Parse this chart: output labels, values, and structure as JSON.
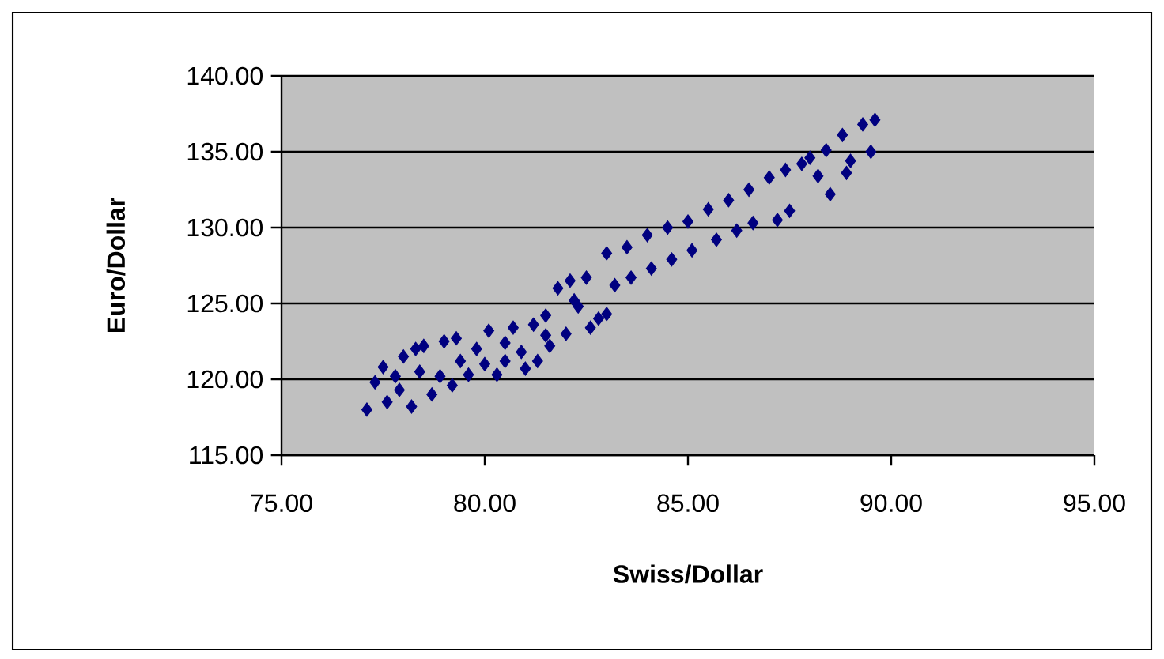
{
  "chart_data": {
    "type": "scatter",
    "xlabel": "Swiss/Dollar",
    "ylabel": "Euro/Dollar",
    "xlim": [
      75,
      95
    ],
    "ylim": [
      115,
      140
    ],
    "xticks": [
      {
        "value": 75,
        "label": "75.00"
      },
      {
        "value": 80,
        "label": "80.00"
      },
      {
        "value": 85,
        "label": "85.00"
      },
      {
        "value": 90,
        "label": "90.00"
      },
      {
        "value": 95,
        "label": "95.00"
      }
    ],
    "yticks": [
      {
        "value": 115,
        "label": "115.00"
      },
      {
        "value": 120,
        "label": "120.00"
      },
      {
        "value": 125,
        "label": "125.00"
      },
      {
        "value": 130,
        "label": "130.00"
      },
      {
        "value": 135,
        "label": "135.00"
      },
      {
        "value": 140,
        "label": "140.00"
      }
    ],
    "grid": "y",
    "marker": "diamond",
    "series": [
      {
        "color": "#000080",
        "x": [
          77.1,
          77.3,
          77.5,
          77.6,
          77.9,
          78.0,
          78.2,
          78.4,
          78.5,
          78.7,
          78.9,
          79.0,
          79.2,
          79.4,
          79.6,
          79.8,
          80.0,
          80.1,
          80.3,
          80.5,
          80.7,
          80.9,
          81.0,
          81.2,
          81.3,
          81.5,
          81.6,
          81.8,
          82.0,
          82.1,
          82.3,
          82.5,
          82.6,
          82.8,
          83.0,
          83.0,
          83.2,
          83.5,
          83.6,
          84.0,
          84.1,
          84.5,
          84.6,
          85.0,
          85.1,
          85.5,
          85.7,
          86.0,
          86.2,
          86.5,
          86.6,
          87.0,
          87.2,
          87.5,
          87.4,
          87.8,
          88.0,
          88.2,
          88.4,
          88.5,
          88.8,
          88.9,
          89.0,
          89.3,
          89.5,
          89.6,
          78.3,
          77.8,
          79.3,
          80.5,
          81.5,
          82.2
        ],
        "values": [
          118,
          119.8,
          120.8,
          118.5,
          119.3,
          121.5,
          118.2,
          120.5,
          122.2,
          119,
          120.2,
          122.5,
          119.6,
          121.2,
          120.3,
          122,
          121,
          123.2,
          120.3,
          122.4,
          123.4,
          121.8,
          120.7,
          123.6,
          121.2,
          124.2,
          122.2,
          126,
          123,
          126.5,
          124.8,
          126.7,
          123.4,
          124,
          128.3,
          124.3,
          126.2,
          128.7,
          126.7,
          129.5,
          127.3,
          130,
          127.9,
          130.4,
          128.5,
          131.2,
          129.2,
          131.8,
          129.8,
          132.5,
          130.3,
          133.3,
          130.5,
          131.1,
          133.8,
          134.2,
          134.6,
          133.4,
          135.1,
          132.2,
          136.1,
          133.6,
          134.4,
          136.8,
          135,
          137.1,
          122,
          120.2,
          122.7,
          121.2,
          122.9,
          125.2
        ]
      }
    ]
  }
}
